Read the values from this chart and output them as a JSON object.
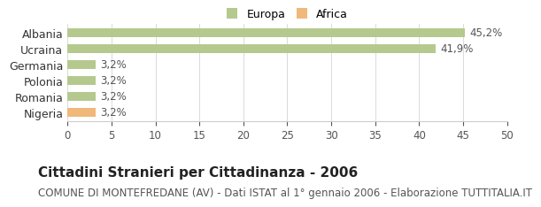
{
  "categories": [
    "Albania",
    "Ucraina",
    "Germania",
    "Polonia",
    "Romania",
    "Nigeria"
  ],
  "values": [
    45.2,
    41.9,
    3.2,
    3.2,
    3.2,
    3.2
  ],
  "labels": [
    "45,2%",
    "41,9%",
    "3,2%",
    "3,2%",
    "3,2%",
    "3,2%"
  ],
  "colors": [
    "#b5c98e",
    "#b5c98e",
    "#b5c98e",
    "#b5c98e",
    "#b5c98e",
    "#f0b87a"
  ],
  "legend_items": [
    {
      "label": "Europa",
      "color": "#b5c98e"
    },
    {
      "label": "Africa",
      "color": "#f0b87a"
    }
  ],
  "xlim": [
    0,
    50
  ],
  "xticks": [
    0,
    5,
    10,
    15,
    20,
    25,
    30,
    35,
    40,
    45,
    50
  ],
  "title": "Cittadini Stranieri per Cittadinanza - 2006",
  "subtitle": "COMUNE DI MONTEFREDANE (AV) - Dati ISTAT al 1° gennaio 2006 - Elaborazione TUTTITALIA.IT",
  "title_fontsize": 11,
  "subtitle_fontsize": 8.5,
  "background_color": "#ffffff"
}
